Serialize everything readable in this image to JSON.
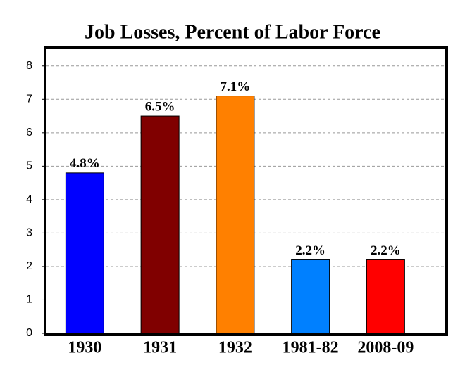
{
  "chart_data": {
    "type": "bar",
    "title": "Job Losses, Percent of Labor Force",
    "categories": [
      "1930",
      "1931",
      "1932",
      "1981-82",
      "2008-09"
    ],
    "values": [
      4.8,
      6.5,
      7.1,
      2.2,
      2.2
    ],
    "value_labels": [
      "4.8%",
      "6.5%",
      "7.1%",
      "2.2%",
      "2.2%"
    ],
    "colors": [
      "#0000ff",
      "#800000",
      "#ff8000",
      "#0080ff",
      "#ff0000"
    ],
    "ylim": [
      0,
      8.5
    ],
    "yticks": [
      0,
      1,
      2,
      3,
      4,
      5,
      6,
      7,
      8
    ],
    "grid": true
  }
}
